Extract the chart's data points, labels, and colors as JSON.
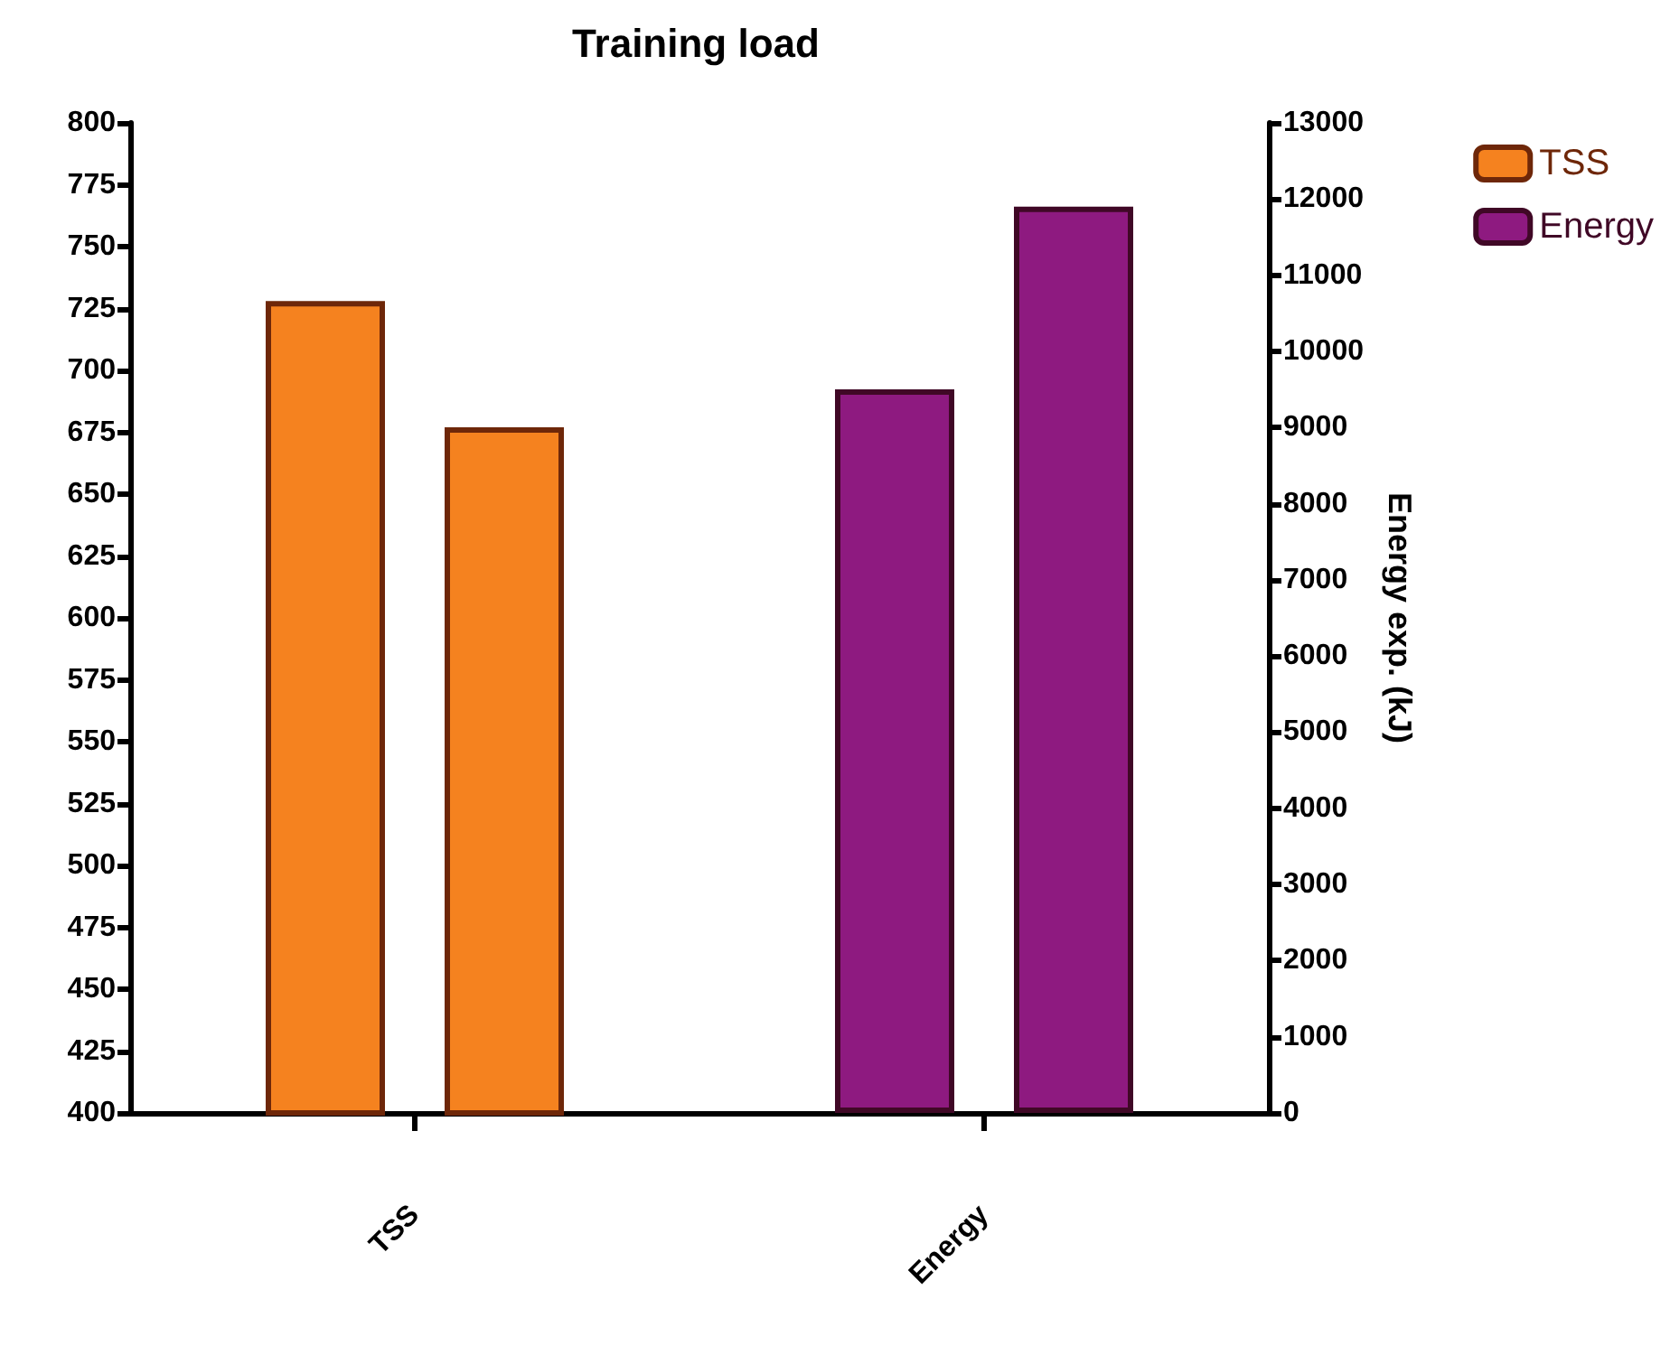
{
  "chart_data": {
    "type": "bar",
    "title": "Training load",
    "y2label": "Energy exp. (kJ)",
    "categories": [
      "TSS",
      "Energy"
    ],
    "series": [
      {
        "name": "TSS",
        "color": "#f5821f",
        "values": [
          728,
          null
        ]
      },
      {
        "color": "#f5821f",
        "values": [
          677,
          null
        ]
      },
      {
        "name": "Energy",
        "color": "#8e1a80",
        "axis": "y2",
        "values": [
          null,
          9500
        ]
      },
      {
        "color": "#8e1a80",
        "axis": "y2",
        "values": [
          null,
          11900
        ]
      }
    ],
    "ylim": [
      400,
      800
    ],
    "yticks": [
      400,
      425,
      450,
      475,
      500,
      525,
      550,
      575,
      600,
      625,
      650,
      675,
      700,
      725,
      750,
      775,
      800
    ],
    "y2lim": [
      0,
      13000
    ],
    "y2ticks": [
      0,
      1000,
      2000,
      3000,
      4000,
      5000,
      6000,
      7000,
      8000,
      9000,
      10000,
      11000,
      12000,
      13000
    ],
    "grid": false,
    "legend": "top right"
  }
}
